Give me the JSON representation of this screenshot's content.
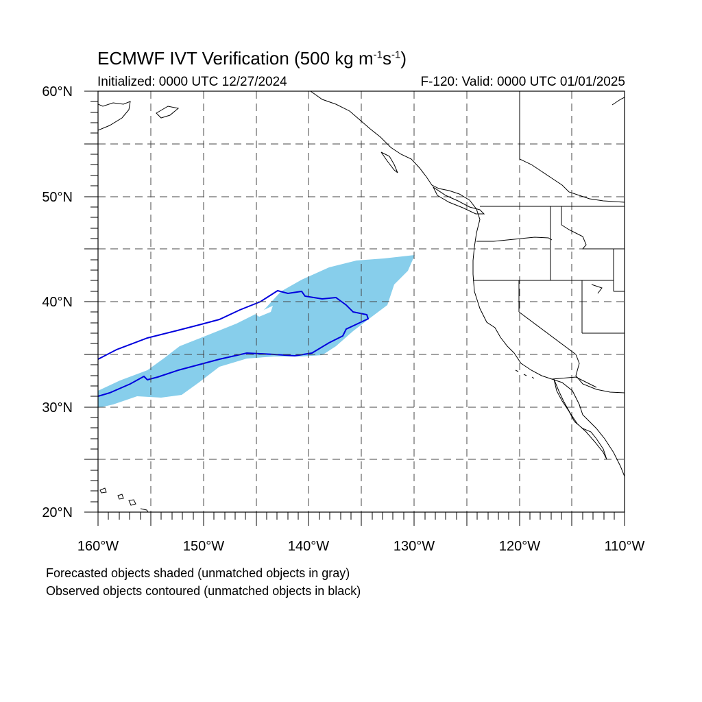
{
  "title": {
    "main": "ECMWF IVT Verification (500 kg m",
    "sup1": "-1",
    "mid": "s",
    "sup2": "-1",
    "end": ")"
  },
  "subtitle": {
    "initialized": "Initialized: 0000 UTC 12/27/2024",
    "valid": "F-120: Valid: 0000 UTC 01/01/2025"
  },
  "map": {
    "lon_range": [
      -160,
      -110
    ],
    "lat_range": [
      20,
      60
    ],
    "grid_lon_step": 5,
    "grid_lat_step": 5,
    "lat_labels": [
      "60°N",
      "50°N",
      "40°N",
      "30°N",
      "20°N"
    ],
    "lon_labels": [
      "160°W",
      "150°W",
      "140°W",
      "130°W",
      "120°W",
      "110°W"
    ],
    "colors": {
      "forecast_fill": "#87ceeb",
      "observed_contour": "#0000dd",
      "coast": "#000000",
      "grid": "#444444"
    }
  },
  "notes": {
    "line1": "Forecasted objects shaded (unmatched objects in gray)",
    "line2": "Observed objects contoured (unmatched objects in black)"
  }
}
